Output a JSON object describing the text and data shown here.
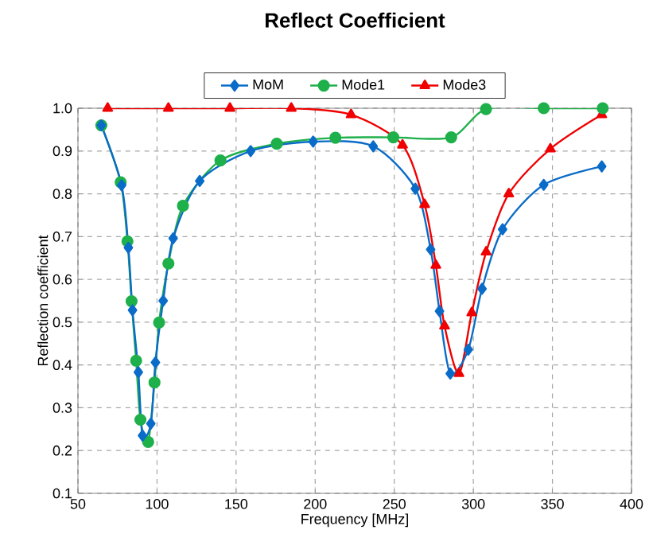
{
  "chart_data": {
    "type": "line",
    "title": "Reflect Coefficient",
    "xlabel": "Frequency [MHz]",
    "ylabel": "Reflection coefficient",
    "xlim": [
      50,
      400
    ],
    "ylim": [
      0.1,
      1.0
    ],
    "xticks": [
      50,
      100,
      150,
      200,
      250,
      300,
      350,
      400
    ],
    "yticks": [
      {
        "value": 0.1,
        "label": "0.1"
      },
      {
        "value": 0.2,
        "label": "0.2"
      },
      {
        "value": 0.3,
        "label": "0.3"
      },
      {
        "value": 0.4,
        "label": "0.4"
      },
      {
        "value": 0.5,
        "label": "0.5"
      },
      {
        "value": 0.6,
        "label": "0.6"
      },
      {
        "value": 0.7,
        "label": "0.7"
      },
      {
        "value": 0.8,
        "label": "0.8"
      },
      {
        "value": 0.9,
        "label": "0.9"
      },
      {
        "value": 1.0,
        "label": "1.0"
      }
    ],
    "grid": true,
    "legend": "top",
    "line_style": "solid",
    "series": [
      {
        "name": "MoM",
        "color": "#0a6cc8",
        "marker": "diamond",
        "x": [
          64.8,
          77.6,
          81.9,
          84.5,
          88.2,
          90.8,
          96.1,
          99,
          103.9,
          110.2,
          127,
          159.2,
          198.7,
          236.7,
          263.3,
          273,
          278.6,
          285.4,
          296.8,
          305.5,
          318.5,
          344.5,
          381.2
        ],
        "values": [
          0.96,
          0.82,
          0.674,
          0.528,
          0.383,
          0.235,
          0.263,
          0.406,
          0.55,
          0.696,
          0.83,
          0.9,
          0.922,
          0.911,
          0.812,
          0.67,
          0.526,
          0.38,
          0.436,
          0.578,
          0.717,
          0.821,
          0.864
        ]
      },
      {
        "name": "Mode1",
        "color": "#1eb04a",
        "marker": "circle",
        "x": [
          64.8,
          77,
          81.3,
          83.9,
          86.8,
          89.5,
          94.4,
          98.4,
          101.3,
          107.2,
          116.4,
          140.1,
          175.7,
          212.8,
          249.4,
          286,
          308,
          344.5,
          381.8
        ],
        "values": [
          0.96,
          0.827,
          0.689,
          0.549,
          0.41,
          0.272,
          0.22,
          0.359,
          0.499,
          0.637,
          0.772,
          0.878,
          0.917,
          0.931,
          0.932,
          0.932,
          0.998,
          1.0,
          1.0
        ]
      },
      {
        "name": "Mode3",
        "color": "#f00000",
        "marker": "triangle",
        "x": [
          68.8,
          107.2,
          146.1,
          184.9,
          222.7,
          255.2,
          269.2,
          276.3,
          281.8,
          290.9,
          299,
          308.1,
          322.4,
          348.7,
          381.2
        ],
        "values": [
          1.0,
          1.0,
          1.0,
          1.0,
          0.985,
          0.914,
          0.775,
          0.633,
          0.491,
          0.38,
          0.522,
          0.664,
          0.8,
          0.905,
          0.985
        ]
      }
    ]
  }
}
